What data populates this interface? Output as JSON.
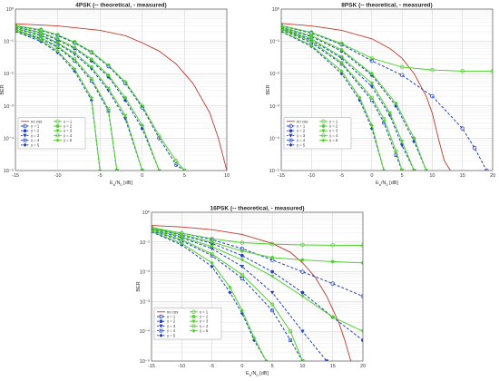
{
  "chart_data": [
    {
      "type": "line",
      "title": "4PSK (-- theoretical, - measured)",
      "xlabel": "Eb/N0 [dB]",
      "xlabel_main": "E",
      "xlabel_sub1": "b",
      "xlabel_mid": "/N",
      "xlabel_sub2": "0",
      "xlabel_tail": " [dB]",
      "ylabel": "BER",
      "xlim": [
        -15,
        10
      ],
      "ylim": [
        1e-05,
        1
      ],
      "yscale": "log",
      "grid": true,
      "legend_placement": "lower-left",
      "xticks": [
        -15,
        -10,
        -5,
        0,
        5,
        10
      ],
      "yticks": [
        1e-05,
        0.0001,
        0.001,
        0.01,
        0.1,
        1
      ],
      "yticklabels": [
        "10⁻⁵",
        "10⁻⁴",
        "10⁻³",
        "10⁻²",
        "10⁻¹",
        "10⁰"
      ],
      "series": [
        {
          "name": "no cos",
          "color": "#c0392b",
          "style": "solid",
          "marker": "none",
          "x": [
            -15,
            -10,
            -5,
            -2,
            0,
            2,
            4,
            6,
            8,
            9,
            10
          ],
          "y": [
            0.35,
            0.3,
            0.22,
            0.15,
            0.09,
            0.05,
            0.02,
            0.005,
            0.0006,
            0.0001,
            1e-05
          ]
        },
        {
          "name": "γ = 1",
          "color": "#1f3fbf",
          "style": "dashed",
          "marker": "o",
          "x": [
            -15,
            -12,
            -10,
            -8,
            -6,
            -4,
            -2,
            0,
            2,
            4,
            5
          ],
          "y": [
            0.3,
            0.22,
            0.15,
            0.09,
            0.045,
            0.017,
            0.005,
            0.0009,
            0.0001,
            1.5e-05,
            1e-05
          ]
        },
        {
          "name": "γ = 1",
          "color": "#4fd12f",
          "style": "solid",
          "marker": "o",
          "x": [
            -15,
            -12,
            -10,
            -8,
            -6,
            -4,
            -2,
            0,
            2,
            4,
            5
          ],
          "y": [
            0.31,
            0.23,
            0.16,
            0.095,
            0.048,
            0.018,
            0.0055,
            0.001,
            0.00012,
            2e-05,
            1e-05
          ]
        },
        {
          "name": "γ = 2",
          "color": "#1f3fbf",
          "style": "dashed",
          "marker": "*",
          "x": [
            -15,
            -12,
            -10,
            -8,
            -6,
            -4,
            -2,
            0,
            2
          ],
          "y": [
            0.28,
            0.18,
            0.11,
            0.06,
            0.025,
            0.008,
            0.0015,
            0.0002,
            1e-05
          ]
        },
        {
          "name": "γ = 2",
          "color": "#4fd12f",
          "style": "solid",
          "marker": "*",
          "x": [
            -15,
            -12,
            -10,
            -8,
            -6,
            -4,
            -2,
            0,
            2
          ],
          "y": [
            0.29,
            0.19,
            0.12,
            0.065,
            0.028,
            0.009,
            0.0018,
            0.00025,
            1e-05
          ]
        },
        {
          "name": "γ = 3",
          "color": "#1f3fbf",
          "style": "dashed",
          "marker": "v",
          "x": [
            -15,
            -12,
            -10,
            -8,
            -6,
            -4,
            -2,
            0
          ],
          "y": [
            0.25,
            0.15,
            0.085,
            0.04,
            0.014,
            0.003,
            0.0004,
            1e-05
          ]
        },
        {
          "name": "γ = 3",
          "color": "#4fd12f",
          "style": "solid",
          "marker": "v",
          "x": [
            -15,
            -12,
            -10,
            -8,
            -6,
            -4,
            -2,
            0
          ],
          "y": [
            0.26,
            0.16,
            0.09,
            0.044,
            0.016,
            0.0035,
            0.0005,
            1e-05
          ]
        },
        {
          "name": "γ = 4",
          "color": "#1f3fbf",
          "style": "dashed",
          "marker": "s",
          "x": [
            -15,
            -12,
            -10,
            -8,
            -6,
            -4,
            -3
          ],
          "y": [
            0.22,
            0.12,
            0.065,
            0.025,
            0.006,
            0.0007,
            1e-05
          ]
        },
        {
          "name": "γ = 4",
          "color": "#4fd12f",
          "style": "solid",
          "marker": "s",
          "x": [
            -15,
            -12,
            -10,
            -8,
            -6,
            -4,
            -3
          ],
          "y": [
            0.23,
            0.13,
            0.07,
            0.028,
            0.007,
            0.0008,
            1e-05
          ]
        },
        {
          "name": "γ = 5",
          "color": "#1f3fbf",
          "style": "dashed",
          "marker": "d",
          "x": [
            -15,
            -12,
            -10,
            -8,
            -6,
            -5
          ],
          "y": [
            0.2,
            0.1,
            0.045,
            0.012,
            0.0015,
            1e-05
          ]
        },
        {
          "name": "γ = 5",
          "color": "#4fd12f",
          "style": "solid",
          "marker": "d",
          "x": [
            -15,
            -12,
            -10,
            -8,
            -6,
            -5
          ],
          "y": [
            0.21,
            0.11,
            0.05,
            0.014,
            0.0018,
            1e-05
          ]
        }
      ]
    },
    {
      "type": "line",
      "title": "8PSK (-- theoretical, - measured)",
      "xlabel": "Eb/N0 [dB]",
      "xlabel_main": "E",
      "xlabel_sub1": "b",
      "xlabel_mid": "/N",
      "xlabel_sub2": "0",
      "xlabel_tail": " [dB]",
      "ylabel": "BER",
      "xlim": [
        -15,
        20
      ],
      "ylim": [
        1e-05,
        1
      ],
      "yscale": "log",
      "grid": true,
      "legend_placement": "lower-left",
      "xticks": [
        -15,
        -10,
        -5,
        0,
        5,
        10,
        15,
        20
      ],
      "yticks": [
        1e-05,
        0.0001,
        0.001,
        0.01,
        0.1,
        1
      ],
      "yticklabels": [
        "10⁻⁵",
        "10⁻⁴",
        "10⁻³",
        "10⁻²",
        "10⁻¹",
        "10⁰"
      ],
      "series": [
        {
          "name": "no cos",
          "color": "#c0392b",
          "style": "solid",
          "marker": "none",
          "x": [
            -15,
            -10,
            -5,
            0,
            3,
            5,
            7,
            9,
            10,
            11,
            12,
            13
          ],
          "y": [
            0.36,
            0.3,
            0.22,
            0.12,
            0.06,
            0.03,
            0.01,
            0.002,
            0.0006,
            0.0001,
            2e-05,
            1e-05
          ]
        },
        {
          "name": "γ = 1",
          "color": "#1f3fbf",
          "style": "dashed",
          "marker": "o",
          "x": [
            -15,
            -10,
            -5,
            0,
            5,
            10,
            15,
            17,
            19
          ],
          "y": [
            0.3,
            0.18,
            0.08,
            0.025,
            0.009,
            0.002,
            0.0002,
            5e-05,
            1e-05
          ]
        },
        {
          "name": "γ = 1",
          "color": "#4fd12f",
          "style": "solid",
          "marker": "o",
          "x": [
            -15,
            -10,
            -5,
            0,
            5,
            10,
            15,
            20
          ],
          "y": [
            0.31,
            0.19,
            0.085,
            0.03,
            0.016,
            0.013,
            0.012,
            0.012
          ]
        },
        {
          "name": "γ = 2",
          "color": "#1f3fbf",
          "style": "dashed",
          "marker": "*",
          "x": [
            -15,
            -10,
            -5,
            0,
            4,
            7,
            9
          ],
          "y": [
            0.27,
            0.14,
            0.05,
            0.009,
            0.001,
            8e-05,
            1e-05
          ]
        },
        {
          "name": "γ = 2",
          "color": "#4fd12f",
          "style": "solid",
          "marker": "*",
          "x": [
            -15,
            -10,
            -5,
            0,
            4,
            7,
            9
          ],
          "y": [
            0.28,
            0.15,
            0.055,
            0.01,
            0.0012,
            0.0001,
            1e-05
          ]
        },
        {
          "name": "γ = 3",
          "color": "#1f3fbf",
          "style": "dashed",
          "marker": "v",
          "x": [
            -15,
            -10,
            -5,
            0,
            3,
            5,
            7
          ],
          "y": [
            0.25,
            0.11,
            0.03,
            0.004,
            0.0005,
            6e-05,
            1e-05
          ]
        },
        {
          "name": "γ = 3",
          "color": "#4fd12f",
          "style": "solid",
          "marker": "v",
          "x": [
            -15,
            -10,
            -5,
            0,
            3,
            5,
            7
          ],
          "y": [
            0.26,
            0.12,
            0.033,
            0.005,
            0.0006,
            8e-05,
            1e-05
          ]
        },
        {
          "name": "γ = 4",
          "color": "#1f3fbf",
          "style": "dashed",
          "marker": "s",
          "x": [
            -15,
            -10,
            -5,
            0,
            2,
            4,
            5
          ],
          "y": [
            0.23,
            0.09,
            0.02,
            0.0015,
            0.0003,
            3e-05,
            1e-05
          ]
        },
        {
          "name": "γ = 4",
          "color": "#4fd12f",
          "style": "solid",
          "marker": "s",
          "x": [
            -15,
            -10,
            -5,
            0,
            2,
            4,
            5
          ],
          "y": [
            0.24,
            0.1,
            0.022,
            0.0018,
            0.0004,
            4e-05,
            1e-05
          ]
        },
        {
          "name": "γ = 5",
          "color": "#1f3fbf",
          "style": "dashed",
          "marker": "d",
          "x": [
            -15,
            -10,
            -5,
            -2,
            0,
            2
          ],
          "y": [
            0.2,
            0.07,
            0.01,
            0.0015,
            0.0002,
            1e-05
          ]
        },
        {
          "name": "γ = 5",
          "color": "#4fd12f",
          "style": "solid",
          "marker": "d",
          "x": [
            -15,
            -10,
            -5,
            -2,
            0,
            2
          ],
          "y": [
            0.21,
            0.075,
            0.012,
            0.0018,
            0.00025,
            1e-05
          ]
        }
      ]
    },
    {
      "type": "line",
      "title": "16PSK (-- theoretical, - measured)",
      "xlabel": "Eb/N0 [dB]",
      "xlabel_main": "E",
      "xlabel_sub1": "b",
      "xlabel_mid": "/N",
      "xlabel_sub2": "0",
      "xlabel_tail": " [dB]",
      "ylabel": "BER",
      "xlim": [
        -15,
        20
      ],
      "ylim": [
        1e-05,
        1
      ],
      "yscale": "log",
      "grid": true,
      "legend_placement": "lower-left",
      "xticks": [
        -15,
        -10,
        -5,
        0,
        5,
        10,
        15,
        20
      ],
      "yticks": [
        1e-05,
        0.0001,
        0.001,
        0.01,
        0.1,
        1
      ],
      "yticklabels": [
        "10⁻⁵",
        "10⁻⁴",
        "10⁻³",
        "10⁻²",
        "10⁻¹",
        "10⁰"
      ],
      "series": [
        {
          "name": "no cos",
          "color": "#c0392b",
          "style": "solid",
          "marker": "none",
          "x": [
            -15,
            -10,
            -5,
            0,
            5,
            8,
            10,
            12,
            14,
            16,
            17,
            18
          ],
          "y": [
            0.36,
            0.32,
            0.26,
            0.18,
            0.09,
            0.045,
            0.02,
            0.007,
            0.0015,
            0.0002,
            5e-05,
            1e-05
          ]
        },
        {
          "name": "γ = 1",
          "color": "#1f3fbf",
          "style": "dashed",
          "marker": "o",
          "x": [
            -15,
            -10,
            -5,
            0,
            5,
            10,
            15,
            20
          ],
          "y": [
            0.3,
            0.2,
            0.12,
            0.06,
            0.025,
            0.01,
            0.004,
            0.0015
          ]
        },
        {
          "name": "γ = 1",
          "color": "#4fd12f",
          "style": "solid",
          "marker": "o",
          "x": [
            -15,
            -10,
            -5,
            0,
            5,
            10,
            15,
            20
          ],
          "y": [
            0.31,
            0.2,
            0.13,
            0.095,
            0.085,
            0.08,
            0.078,
            0.077
          ]
        },
        {
          "name": "γ = 2",
          "color": "#1f3fbf",
          "style": "dashed",
          "marker": "*",
          "x": [
            -15,
            -10,
            -5,
            0,
            5,
            10,
            15,
            20
          ],
          "y": [
            0.28,
            0.17,
            0.09,
            0.035,
            0.01,
            0.002,
            0.0003,
            5e-05
          ]
        },
        {
          "name": "γ = 2",
          "color": "#4fd12f",
          "style": "solid",
          "marker": "*",
          "x": [
            -15,
            -10,
            -5,
            0,
            5,
            10,
            15,
            20
          ],
          "y": [
            0.29,
            0.18,
            0.1,
            0.05,
            0.03,
            0.025,
            0.022,
            0.02
          ]
        },
        {
          "name": "γ = 3",
          "color": "#1f3fbf",
          "style": "dashed",
          "marker": "v",
          "x": [
            -15,
            -10,
            -5,
            0,
            5,
            10,
            14
          ],
          "y": [
            0.26,
            0.14,
            0.06,
            0.015,
            0.002,
            0.0001,
            1e-05
          ]
        },
        {
          "name": "γ = 3",
          "color": "#4fd12f",
          "style": "solid",
          "marker": "v",
          "x": [
            -15,
            -10,
            -5,
            0,
            5,
            10,
            15,
            20
          ],
          "y": [
            0.27,
            0.15,
            0.07,
            0.025,
            0.007,
            0.0015,
            0.0003,
            0.0001
          ]
        },
        {
          "name": "γ = 4",
          "color": "#1f3fbf",
          "style": "dashed",
          "marker": "s",
          "x": [
            -15,
            -10,
            -5,
            0,
            5,
            8,
            10
          ],
          "y": [
            0.24,
            0.11,
            0.035,
            0.006,
            0.0005,
            5e-05,
            1e-05
          ]
        },
        {
          "name": "γ = 4",
          "color": "#4fd12f",
          "style": "solid",
          "marker": "s",
          "x": [
            -15,
            -10,
            -5,
            0,
            5,
            8,
            10
          ],
          "y": [
            0.25,
            0.12,
            0.04,
            0.008,
            0.0008,
            0.0001,
            1e-05
          ]
        },
        {
          "name": "γ = 5",
          "color": "#1f3fbf",
          "style": "dashed",
          "marker": "d",
          "x": [
            -15,
            -10,
            -5,
            -2,
            0,
            2,
            4
          ],
          "y": [
            0.22,
            0.08,
            0.015,
            0.002,
            0.0004,
            5e-05,
            1e-05
          ]
        },
        {
          "name": "γ = 5",
          "color": "#4fd12f",
          "style": "solid",
          "marker": "d",
          "x": [
            -15,
            -10,
            -5,
            -2,
            0,
            2,
            4
          ],
          "y": [
            0.23,
            0.09,
            0.02,
            0.003,
            0.0005,
            6e-05,
            1e-05
          ]
        }
      ]
    }
  ]
}
